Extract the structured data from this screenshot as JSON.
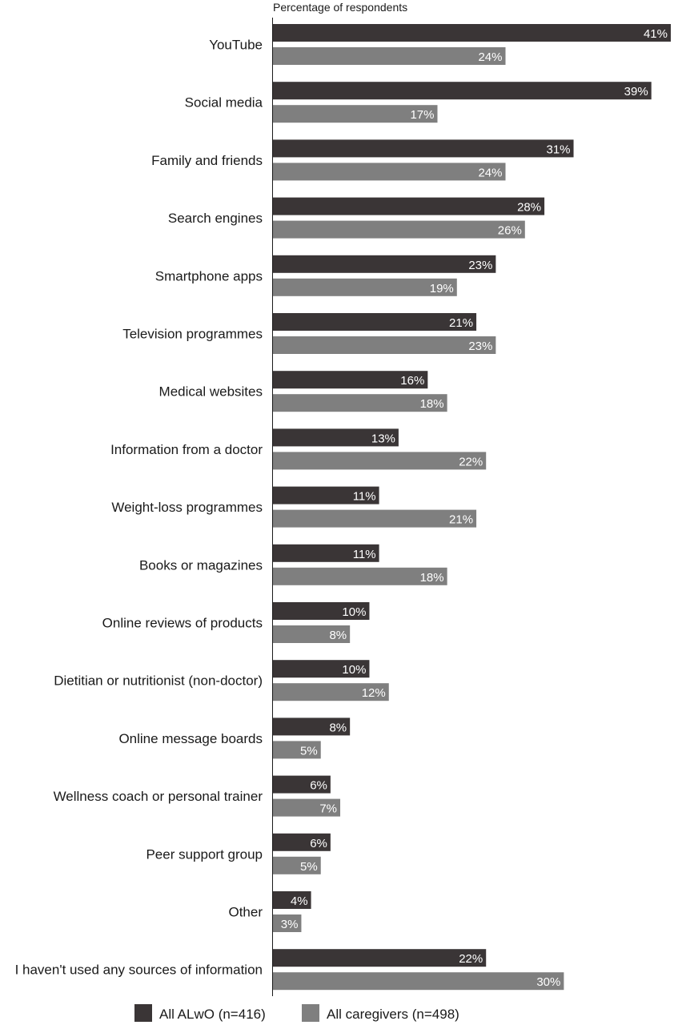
{
  "chart_data": {
    "type": "bar",
    "orientation": "horizontal",
    "xlabel": "Percentage of respondents",
    "ylabel": "",
    "xlim": [
      0,
      41
    ],
    "grid": false,
    "legend_position": "bottom",
    "value_suffix": "%",
    "categories": [
      "YouTube",
      "Social media",
      "Family and friends",
      "Search engines",
      "Smartphone apps",
      "Television programmes",
      "Medical websites",
      "Information from a doctor",
      "Weight-loss programmes",
      "Books or magazines",
      "Online reviews of products",
      "Dietitian or nutritionist (non-doctor)",
      "Online message boards",
      "Wellness coach or personal trainer",
      "Peer support group",
      "Other",
      "I haven't used any sources of information"
    ],
    "series": [
      {
        "name": "All ALwO (n=416)",
        "color": "#3a3536",
        "values": [
          41,
          39,
          31,
          28,
          23,
          21,
          16,
          13,
          11,
          11,
          10,
          10,
          8,
          6,
          6,
          4,
          22
        ]
      },
      {
        "name": "All caregivers (n=498)",
        "color": "#7f7f7f",
        "values": [
          24,
          17,
          24,
          26,
          19,
          23,
          18,
          22,
          21,
          18,
          8,
          12,
          5,
          7,
          5,
          3,
          30
        ]
      }
    ]
  }
}
